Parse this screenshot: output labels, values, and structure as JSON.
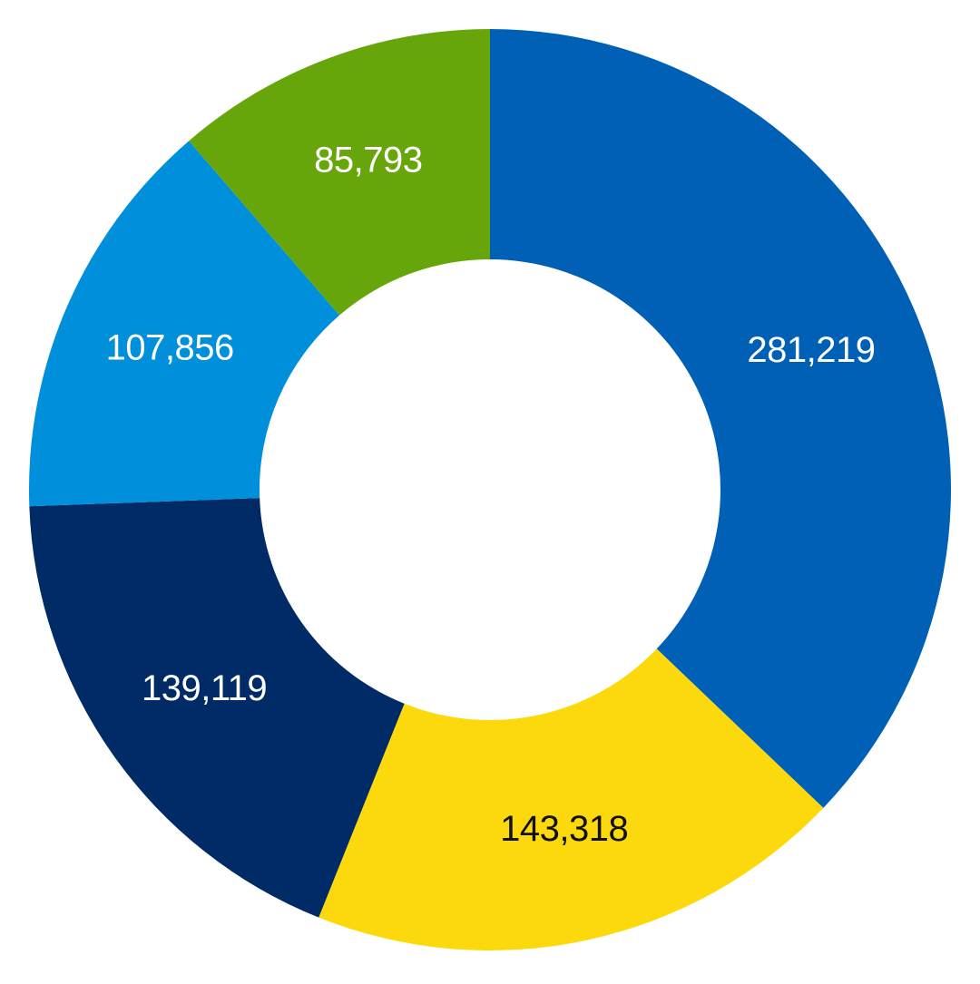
{
  "chart_data": {
    "type": "pie",
    "variant": "donut",
    "start_angle_deg": 0,
    "direction": "clockwise",
    "legend": "none",
    "slices": [
      {
        "value": 281219,
        "label": "281,219",
        "color": "#0060B6",
        "label_color": "#FFFFFF"
      },
      {
        "value": 143318,
        "label": "143,318",
        "color": "#FBD90D",
        "label_color": "#111111"
      },
      {
        "value": 139119,
        "label": "139,119",
        "color": "#002B66",
        "label_color": "#FFFFFF"
      },
      {
        "value": 107856,
        "label": "107,856",
        "color": "#008FDB",
        "label_color": "#FFFFFF"
      },
      {
        "value": 85793,
        "label": "85,793",
        "color": "#66A60A",
        "label_color": "#FFFFFF"
      }
    ]
  }
}
